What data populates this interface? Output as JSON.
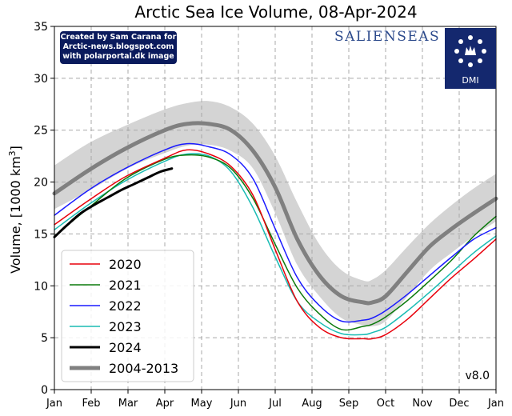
{
  "chart_data": {
    "type": "line",
    "title": "Arctic Sea Ice Volume, 08-Apr-2024",
    "xlabel": "",
    "ylabel_main": "Volume, [1000 km",
    "ylabel_sup": "3",
    "ylabel_close": "]",
    "ylim": [
      0,
      35
    ],
    "yticks": [
      0,
      5,
      10,
      15,
      20,
      25,
      30,
      35
    ],
    "xlim": [
      0,
      1
    ],
    "months": [
      "Jan",
      "Feb",
      "Mar",
      "Apr",
      "May",
      "Jun",
      "Jul",
      "Aug",
      "Sep",
      "Oct",
      "Nov",
      "Dec",
      "Jan"
    ],
    "grid": true,
    "legend_position": "lower-left",
    "version": "v8.0",
    "band": {
      "name": "2004-2013 range",
      "x": [
        0.0,
        0.08,
        0.17,
        0.25,
        0.3,
        0.35,
        0.4,
        0.45,
        0.5,
        0.55,
        0.6,
        0.65,
        0.7,
        0.72,
        0.75,
        0.8,
        0.85,
        0.9,
        0.95,
        1.0
      ],
      "upper": [
        21.6,
        23.8,
        25.6,
        27.0,
        27.6,
        27.8,
        27.2,
        25.6,
        22.5,
        18.0,
        14.0,
        11.5,
        10.5,
        10.6,
        11.5,
        13.8,
        16.0,
        17.8,
        19.4,
        20.8
      ],
      "lower": [
        17.4,
        19.2,
        21.4,
        22.8,
        23.5,
        23.6,
        23.0,
        21.3,
        17.0,
        12.0,
        9.0,
        6.9,
        6.2,
        6.1,
        6.6,
        9.0,
        11.5,
        13.2,
        14.8,
        16.2
      ]
    },
    "series": [
      {
        "name": "2020",
        "color": "#e8000b",
        "x": [
          0.0,
          0.08,
          0.16,
          0.25,
          0.3,
          0.35,
          0.4,
          0.45,
          0.5,
          0.55,
          0.6,
          0.65,
          0.7,
          0.72,
          0.75,
          0.8,
          0.85,
          0.9,
          0.95,
          1.0
        ],
        "y": [
          15.9,
          18.3,
          20.5,
          22.3,
          23.1,
          22.7,
          21.5,
          18.7,
          13.5,
          8.5,
          6.0,
          5.0,
          4.9,
          4.9,
          5.3,
          6.8,
          8.8,
          10.8,
          12.6,
          14.5
        ]
      },
      {
        "name": "2021",
        "color": "#0b7a0b",
        "x": [
          0.0,
          0.08,
          0.16,
          0.25,
          0.3,
          0.35,
          0.4,
          0.45,
          0.5,
          0.55,
          0.6,
          0.65,
          0.7,
          0.72,
          0.75,
          0.8,
          0.85,
          0.9,
          0.95,
          1.0
        ],
        "y": [
          14.8,
          17.6,
          20.3,
          22.2,
          22.6,
          22.4,
          21.3,
          18.4,
          14.0,
          9.8,
          7.3,
          5.8,
          6.1,
          6.3,
          7.0,
          8.6,
          10.5,
          12.5,
          14.8,
          16.7
        ]
      },
      {
        "name": "2022",
        "color": "#1a1aff",
        "x": [
          0.0,
          0.08,
          0.16,
          0.25,
          0.3,
          0.35,
          0.4,
          0.45,
          0.5,
          0.55,
          0.6,
          0.65,
          0.7,
          0.72,
          0.75,
          0.8,
          0.85,
          0.9,
          0.95,
          1.0
        ],
        "y": [
          16.8,
          19.3,
          21.3,
          23.1,
          23.7,
          23.4,
          22.6,
          20.3,
          15.5,
          10.8,
          8.1,
          6.6,
          6.7,
          6.9,
          7.6,
          9.2,
          11.0,
          12.8,
          14.5,
          15.6
        ]
      },
      {
        "name": "2023",
        "color": "#1abcb4",
        "x": [
          0.0,
          0.08,
          0.16,
          0.25,
          0.3,
          0.35,
          0.4,
          0.45,
          0.5,
          0.55,
          0.6,
          0.65,
          0.7,
          0.72,
          0.75,
          0.8,
          0.85,
          0.9,
          0.95,
          1.0
        ],
        "y": [
          15.4,
          17.9,
          20.1,
          22.0,
          22.7,
          22.5,
          21.0,
          17.5,
          12.8,
          8.5,
          6.5,
          5.4,
          5.3,
          5.5,
          6.0,
          7.6,
          9.4,
          11.3,
          13.2,
          14.8
        ]
      },
      {
        "name": "2024",
        "color": "#000000",
        "width": 3,
        "x": [
          0.0,
          0.03,
          0.06,
          0.09,
          0.12,
          0.15,
          0.18,
          0.21,
          0.24,
          0.266
        ],
        "y": [
          14.7,
          15.9,
          17.0,
          17.8,
          18.5,
          19.2,
          19.8,
          20.4,
          21.0,
          21.3
        ]
      },
      {
        "name": "2004-2013",
        "color": "#808080",
        "width": 5,
        "x": [
          0.0,
          0.08,
          0.16,
          0.25,
          0.3,
          0.35,
          0.4,
          0.45,
          0.5,
          0.55,
          0.6,
          0.65,
          0.7,
          0.72,
          0.75,
          0.8,
          0.85,
          0.9,
          0.95,
          1.0
        ],
        "y": [
          18.9,
          21.2,
          23.2,
          25.0,
          25.6,
          25.6,
          25.0,
          23.0,
          19.5,
          14.5,
          11.0,
          9.0,
          8.4,
          8.4,
          9.0,
          11.4,
          13.8,
          15.5,
          17.0,
          18.4
        ]
      }
    ]
  },
  "credit": {
    "line1": "Created by Sam Carana for",
    "line2": "Arctic-news.blogspot.com",
    "line3": "with polarportal.dk image"
  },
  "logos": {
    "salienseas": "SALIENSEAS",
    "dmi": "DMI"
  }
}
